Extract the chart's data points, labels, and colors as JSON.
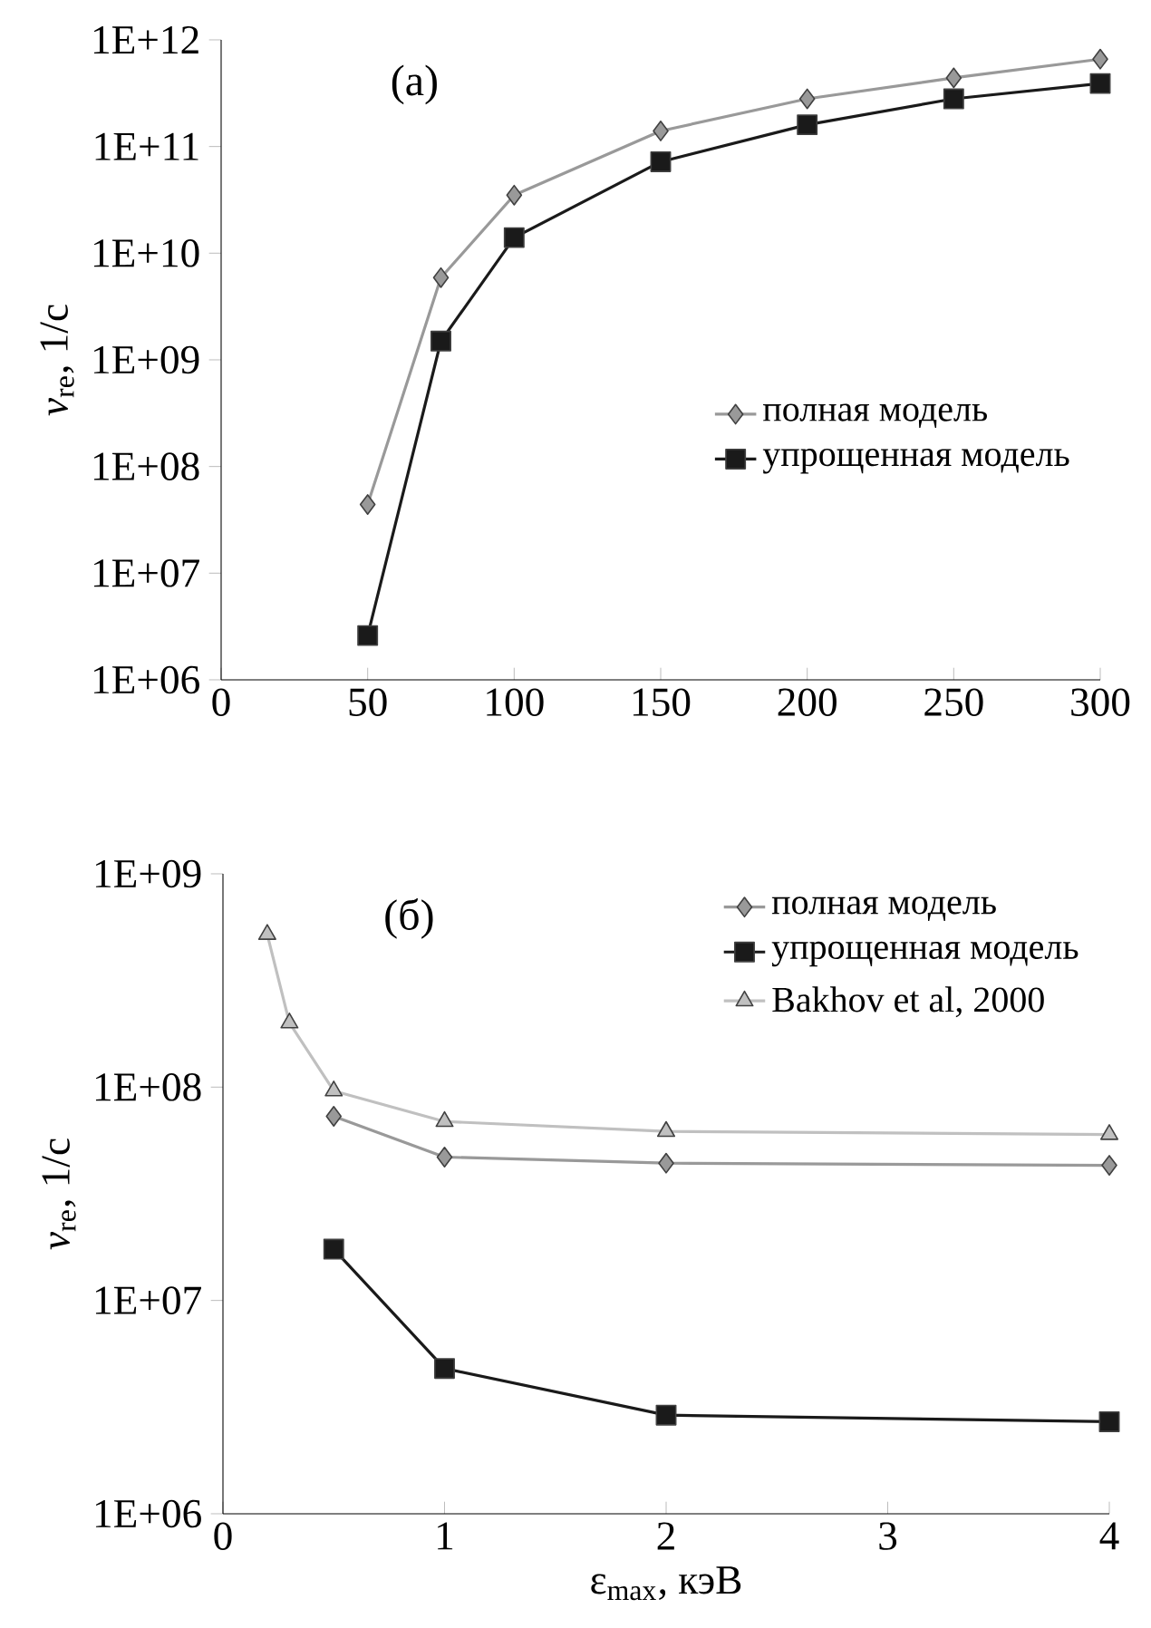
{
  "chart_data": [
    {
      "type": "line",
      "ylabel": "*v*$_{re}$, 1/с",
      "annotations": [
        "(a)"
      ],
      "log": "y",
      "legend": "right",
      "line_style": "solid",
      "x": [
        50,
        75,
        100,
        150,
        200,
        250,
        300
      ],
      "series": [
        {
          "name": "полная модель",
          "color": "#999999",
          "marker": "diamond",
          "values": [
            44000000.0,
            5900000000.0,
            35000000000.0,
            140000000000.0,
            280000000000.0,
            440000000000.0,
            660000000000.0
          ]
        },
        {
          "name": "упрощенная модель",
          "color": "#1a1a1a",
          "marker": "square",
          "values": [
            2600000.0,
            1500000000.0,
            14000000000.0,
            72000000000.0,
            160000000000.0,
            280000000000.0,
            390000000000.0
          ]
        }
      ],
      "xlim": [
        0,
        300
      ],
      "xticks": [
        0,
        50,
        100,
        150,
        200,
        250,
        300
      ],
      "ylim": [
        1000000.0,
        1000000000000.0
      ],
      "yticks": [
        {
          "value": 1000000.0,
          "label": "1E+06"
        },
        {
          "value": 10000000.0,
          "label": "1E+07"
        },
        {
          "value": 100000000.0,
          "label": "1E+08"
        },
        {
          "value": 1000000000.0,
          "label": "1E+09"
        },
        {
          "value": 10000000000.0,
          "label": "1E+10"
        },
        {
          "value": 100000000000.0,
          "label": "1E+11"
        },
        {
          "value": 1000000000000.0,
          "label": "1E+12"
        }
      ]
    },
    {
      "type": "line",
      "xlabel": "ε$_{max}$, кэВ",
      "ylabel": "*v*$_{re}$, 1/с",
      "annotations": [
        "(б)"
      ],
      "log": "y",
      "legend": "top right",
      "line_style": "solid",
      "series": [
        {
          "name": "полная модель",
          "color": "#999999",
          "marker": "diamond",
          "x": [
            0.5,
            1,
            2,
            4
          ],
          "values": [
            73000000.0,
            47000000.0,
            44000000.0,
            43000000.0
          ]
        },
        {
          "name": "упрощенная модель",
          "color": "#1a1a1a",
          "marker": "square",
          "x": [
            0.5,
            1,
            2,
            4
          ],
          "values": [
            17400000.0,
            4800000.0,
            2900000.0,
            2700000.0
          ]
        },
        {
          "name": "Bakhov et al, 2000",
          "color": "#c0c0c0",
          "marker": "triangle",
          "x": [
            0.2,
            0.3,
            0.5,
            1,
            2,
            4
          ],
          "values": [
            520000000.0,
            200000000.0,
            96000000.0,
            69000000.0,
            62000000.0,
            60000000.0
          ]
        }
      ],
      "xlim": [
        0,
        4
      ],
      "xticks": [
        0,
        1,
        2,
        3,
        4
      ],
      "ylim": [
        1000000.0,
        1000000000.0
      ],
      "yticks": [
        {
          "value": 1000000.0,
          "label": "1E+06"
        },
        {
          "value": 10000000.0,
          "label": "1E+07"
        },
        {
          "value": 100000000.0,
          "label": "1E+08"
        },
        {
          "value": 1000000000.0,
          "label": "1E+09"
        }
      ]
    }
  ]
}
